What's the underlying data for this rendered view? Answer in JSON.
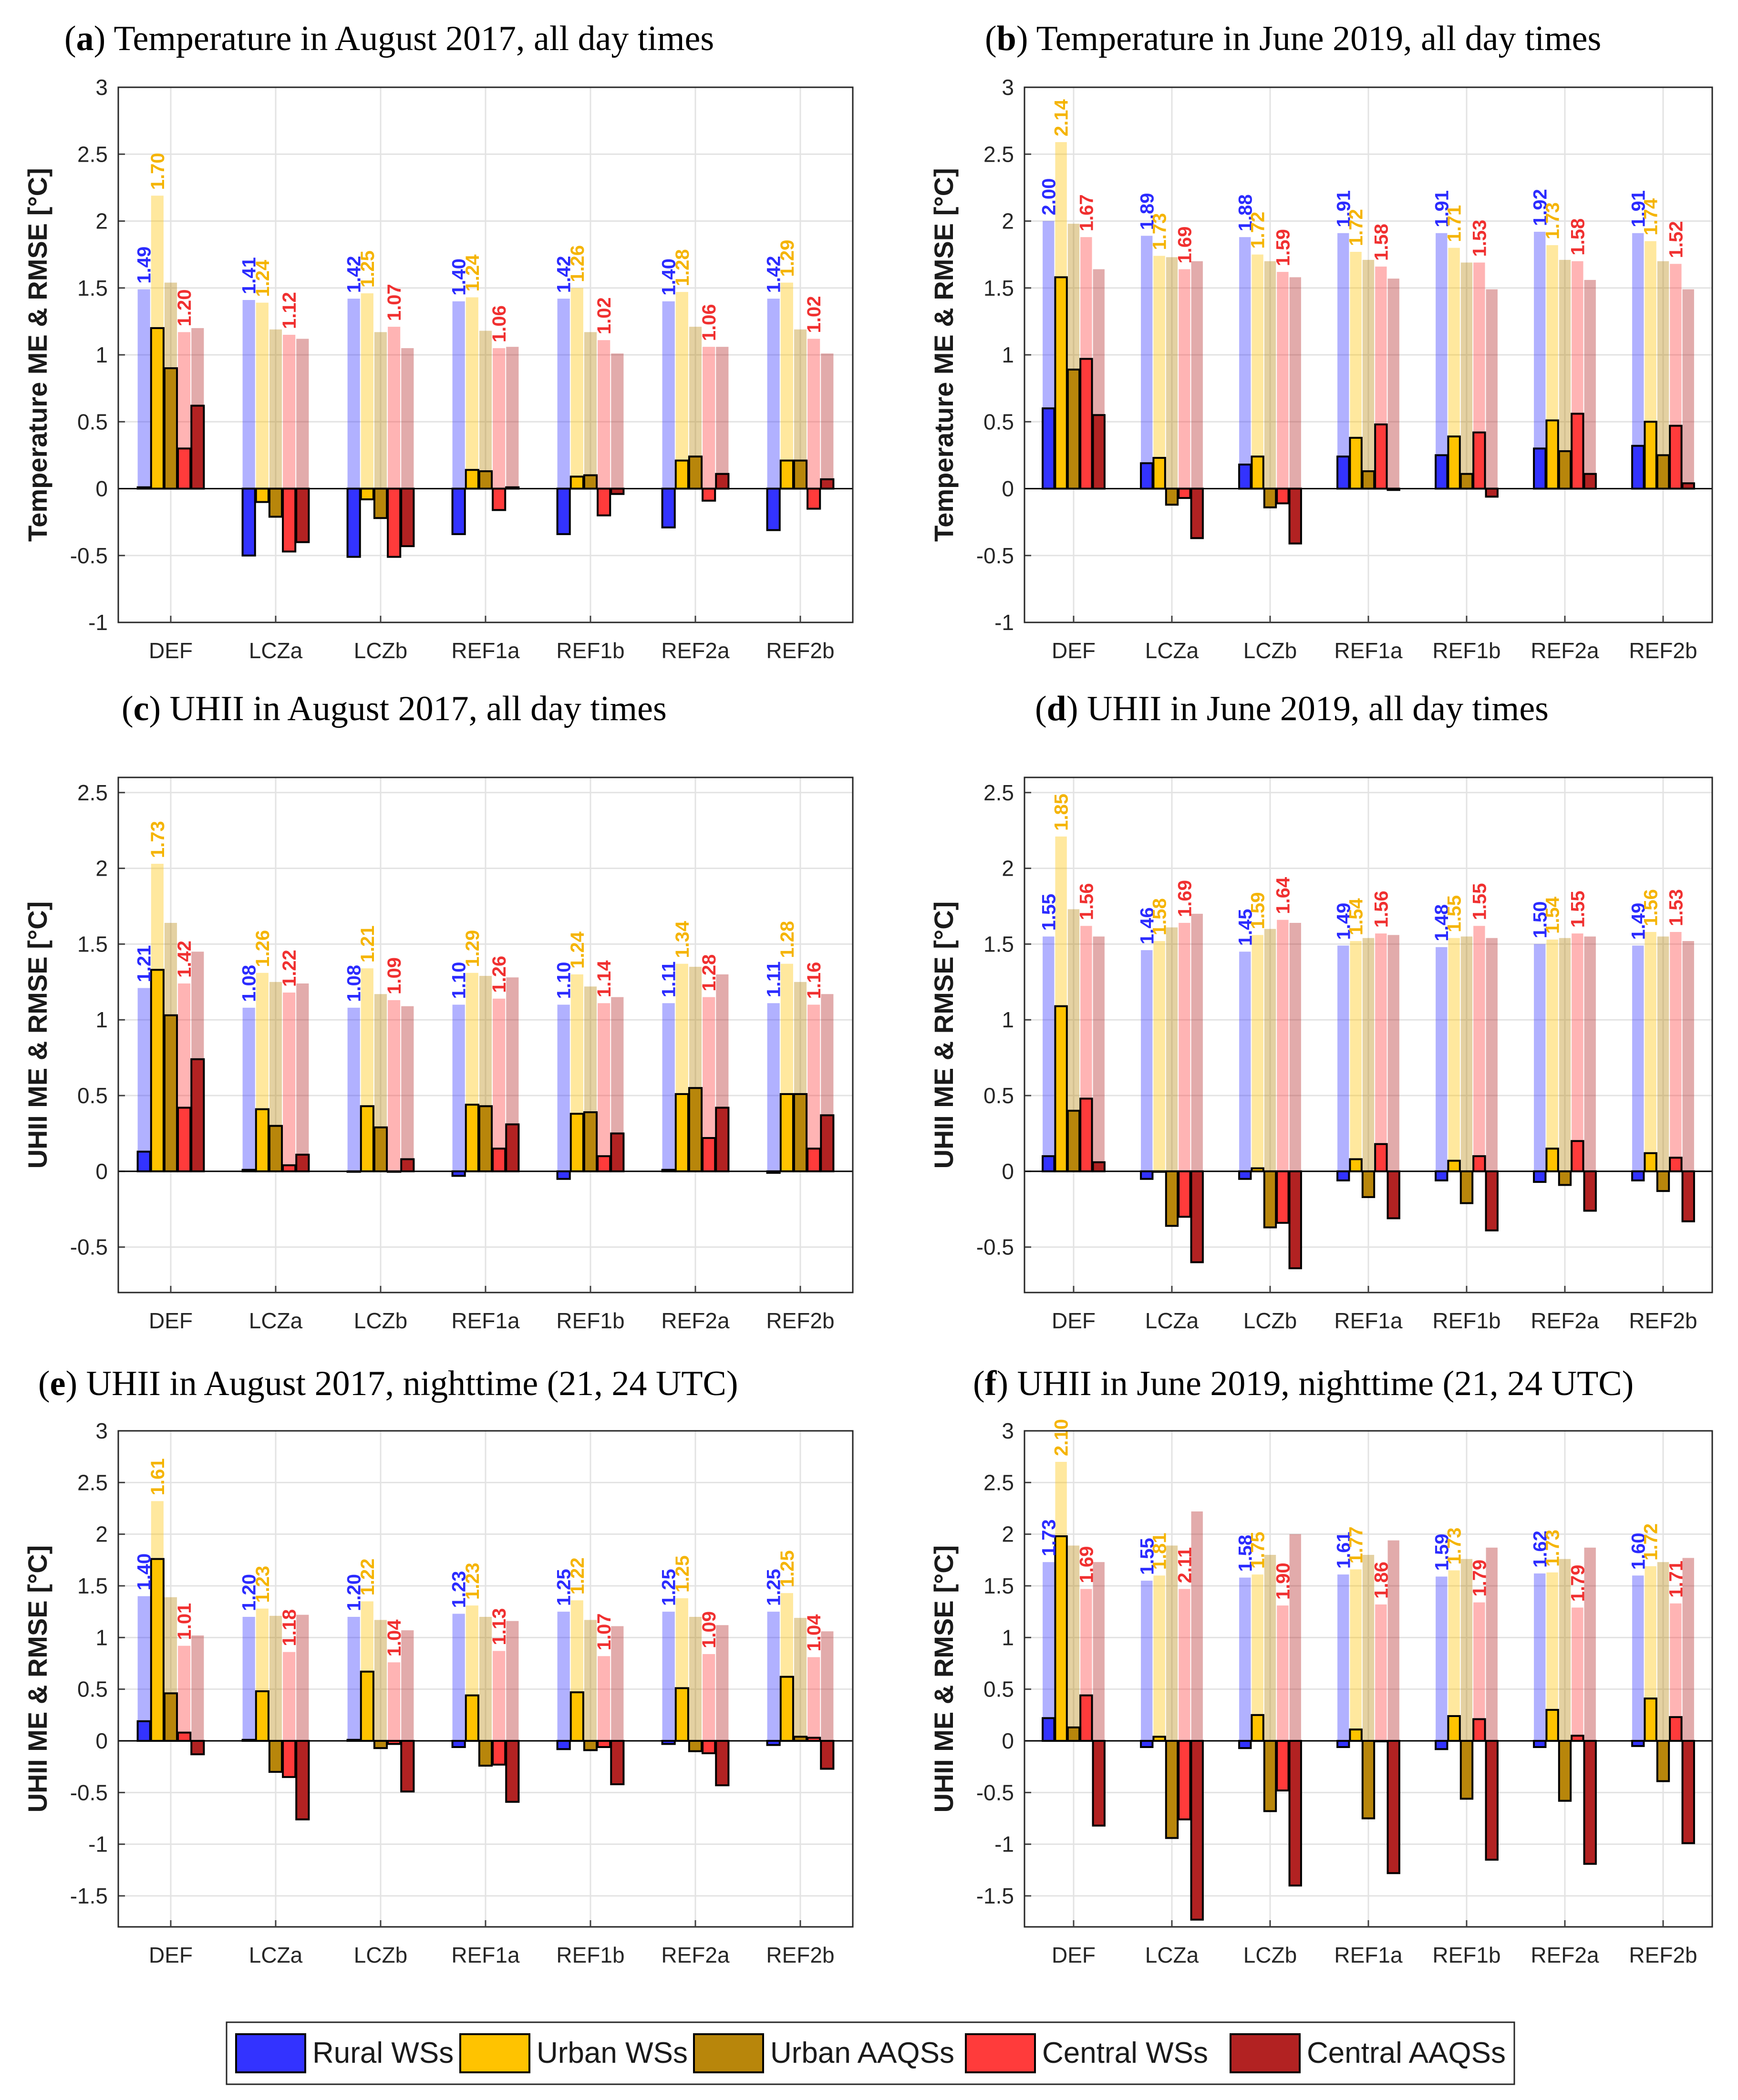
{
  "figure": {
    "colors": {
      "rural": "#3333ff",
      "urban": "#ffc300",
      "urban_aaqs": "#b8860b",
      "central": "#ff3b3b",
      "central_aaqs": "#b22222"
    }
  },
  "legend": {
    "items": [
      {
        "label": "Rural WSs",
        "color": "#3333ff"
      },
      {
        "label": "Urban WSs",
        "color": "#ffc300"
      },
      {
        "label": "Urban AAQSs",
        "color": "#b8860b"
      },
      {
        "label": "Central WSs",
        "color": "#ff3b3b"
      },
      {
        "label": "Central AAQSs",
        "color": "#b22222"
      }
    ]
  },
  "chart_data": [
    {
      "type": "bar",
      "letter": "a",
      "title": "Temperature in August 2017, all day times",
      "ylabel": "Temperature ME & RMSE [°C]",
      "ylim": [
        -1,
        3
      ],
      "yticks": [
        -1,
        -0.5,
        0,
        0.5,
        1,
        1.5,
        2,
        2.5,
        3
      ],
      "ytick_labels": [
        "-1",
        "-0.5",
        "0",
        "0.5",
        "1",
        "1.5",
        "2",
        "2.5",
        "3"
      ],
      "categories": [
        "DEF",
        "LCZa",
        "LCZb",
        "REF1a",
        "REF1b",
        "REF2a",
        "REF2b"
      ],
      "series": [
        {
          "name": "Rural WSs",
          "rmse": [
            1.49,
            1.41,
            1.42,
            1.4,
            1.42,
            1.4,
            1.42
          ],
          "me": [
            0.01,
            -0.5,
            -0.51,
            -0.34,
            -0.34,
            -0.29,
            -0.31
          ]
        },
        {
          "name": "Urban WSs",
          "rmse": [
            2.19,
            1.39,
            1.46,
            1.43,
            1.5,
            1.47,
            1.54
          ],
          "me": [
            1.2,
            -0.1,
            -0.08,
            0.14,
            0.09,
            0.21,
            0.21
          ]
        },
        {
          "name": "Urban AAQSs",
          "rmse": [
            1.54,
            1.19,
            1.17,
            1.18,
            1.17,
            1.21,
            1.19
          ],
          "me": [
            0.9,
            -0.21,
            -0.22,
            0.13,
            0.1,
            0.24,
            0.21
          ]
        },
        {
          "name": "Central WSs",
          "rmse": [
            1.17,
            1.15,
            1.21,
            1.05,
            1.11,
            1.06,
            1.12
          ],
          "me": [
            0.3,
            -0.47,
            -0.51,
            -0.16,
            -0.2,
            -0.09,
            -0.15
          ]
        },
        {
          "name": "Central AAQSs",
          "rmse": [
            1.2,
            1.12,
            1.05,
            1.06,
            1.01,
            1.06,
            1.01
          ],
          "me": [
            0.62,
            -0.4,
            -0.43,
            0.01,
            -0.04,
            0.11,
            0.07
          ]
        }
      ],
      "labels": {
        "Rural WSs": [
          "1.49",
          "1.41",
          "1.42",
          "1.40",
          "1.42",
          "1.40",
          "1.42"
        ],
        "Urban WSs": [
          "1.70",
          "1.24",
          "1.25",
          "1.24",
          "1.26",
          "1.28",
          "1.29"
        ],
        "Central WSs": [
          "1.20",
          "1.12",
          "1.07",
          "1.06",
          "1.02",
          "1.06",
          "1.02"
        ]
      }
    },
    {
      "type": "bar",
      "letter": "b",
      "title": "Temperature in June 2019, all day times",
      "ylabel": "Temperature ME & RMSE [°C]",
      "ylim": [
        -1,
        3
      ],
      "yticks": [
        -1,
        -0.5,
        0,
        0.5,
        1,
        1.5,
        2,
        2.5,
        3
      ],
      "ytick_labels": [
        "-1",
        "-0.5",
        "0",
        "0.5",
        "1",
        "1.5",
        "2",
        "2.5",
        "3"
      ],
      "categories": [
        "DEF",
        "LCZa",
        "LCZb",
        "REF1a",
        "REF1b",
        "REF2a",
        "REF2b"
      ],
      "series": [
        {
          "name": "Rural WSs",
          "rmse": [
            2.0,
            1.89,
            1.88,
            1.91,
            1.91,
            1.92,
            1.91
          ],
          "me": [
            0.6,
            0.19,
            0.18,
            0.24,
            0.25,
            0.3,
            0.32
          ]
        },
        {
          "name": "Urban WSs",
          "rmse": [
            2.59,
            1.74,
            1.75,
            1.77,
            1.8,
            1.82,
            1.85
          ],
          "me": [
            1.58,
            0.23,
            0.24,
            0.38,
            0.39,
            0.51,
            0.5
          ]
        },
        {
          "name": "Urban AAQSs",
          "rmse": [
            1.98,
            1.73,
            1.7,
            1.71,
            1.69,
            1.71,
            1.7
          ],
          "me": [
            0.89,
            -0.12,
            -0.14,
            0.13,
            0.11,
            0.28,
            0.25
          ]
        },
        {
          "name": "Central WSs",
          "rmse": [
            1.88,
            1.64,
            1.62,
            1.66,
            1.69,
            1.7,
            1.68
          ],
          "me": [
            0.97,
            -0.07,
            -0.11,
            0.48,
            0.42,
            0.56,
            0.47
          ]
        },
        {
          "name": "Central AAQSs",
          "rmse": [
            1.64,
            1.7,
            1.58,
            1.57,
            1.49,
            1.56,
            1.49
          ],
          "me": [
            0.55,
            -0.37,
            -0.41,
            -0.01,
            -0.06,
            0.11,
            0.04
          ]
        }
      ],
      "labels": {
        "Rural WSs": [
          "2.00",
          "1.89",
          "1.88",
          "1.91",
          "1.91",
          "1.92",
          "1.91"
        ],
        "Urban WSs": [
          "2.14",
          "1.73",
          "1.72",
          "1.72",
          "1.71",
          "1.73",
          "1.74"
        ],
        "Central WSs": [
          "1.67",
          "1.69",
          "1.59",
          "1.58",
          "1.53",
          "1.58",
          "1.52"
        ]
      }
    },
    {
      "type": "bar",
      "letter": "c",
      "title": "UHII in August 2017, all day times",
      "ylabel": "UHII ME & RMSE [°C]",
      "ylim": [
        -0.8,
        2.6
      ],
      "yticks": [
        -0.5,
        0,
        0.5,
        1,
        1.5,
        2,
        2.5
      ],
      "ytick_labels": [
        "-0.5",
        "0",
        "0.5",
        "1",
        "1.5",
        "2",
        "2.5"
      ],
      "categories": [
        "DEF",
        "LCZa",
        "LCZb",
        "REF1a",
        "REF1b",
        "REF2a",
        "REF2b"
      ],
      "series": [
        {
          "name": "Rural WSs",
          "rmse": [
            1.21,
            1.08,
            1.08,
            1.1,
            1.1,
            1.11,
            1.11
          ],
          "me": [
            0.13,
            0.01,
            0.0,
            -0.03,
            -0.05,
            0.01,
            -0.01
          ]
        },
        {
          "name": "Urban WSs",
          "rmse": [
            2.03,
            1.31,
            1.34,
            1.31,
            1.3,
            1.37,
            1.37
          ],
          "me": [
            1.33,
            0.41,
            0.43,
            0.44,
            0.38,
            0.51,
            0.51
          ]
        },
        {
          "name": "Urban AAQSs",
          "rmse": [
            1.64,
            1.25,
            1.17,
            1.29,
            1.22,
            1.35,
            1.25
          ],
          "me": [
            1.03,
            0.3,
            0.29,
            0.43,
            0.39,
            0.55,
            0.51
          ]
        },
        {
          "name": "Central WSs",
          "rmse": [
            1.24,
            1.18,
            1.13,
            1.14,
            1.11,
            1.15,
            1.1
          ],
          "me": [
            0.42,
            0.04,
            0.0,
            0.15,
            0.1,
            0.22,
            0.15
          ]
        },
        {
          "name": "Central AAQSs",
          "rmse": [
            1.45,
            1.24,
            1.09,
            1.28,
            1.15,
            1.3,
            1.17
          ],
          "me": [
            0.74,
            0.11,
            0.08,
            0.31,
            0.25,
            0.42,
            0.37
          ]
        }
      ],
      "labels": {
        "Rural WSs": [
          "1.21",
          "1.08",
          "1.08",
          "1.10",
          "1.10",
          "1.11",
          "1.11"
        ],
        "Urban WSs": [
          "1.73",
          "1.26",
          "1.21",
          "1.29",
          "1.24",
          "1.34",
          "1.28"
        ],
        "Central WSs": [
          "1.42",
          "1.22",
          "1.09",
          "1.26",
          "1.14",
          "1.28",
          "1.16"
        ]
      }
    },
    {
      "type": "bar",
      "letter": "d",
      "title": "UHII in June 2019, all day times",
      "ylabel": "UHII ME & RMSE [°C]",
      "ylim": [
        -0.8,
        2.6
      ],
      "yticks": [
        -0.5,
        0,
        0.5,
        1,
        1.5,
        2,
        2.5
      ],
      "ytick_labels": [
        "-0.5",
        "0",
        "0.5",
        "1",
        "1.5",
        "2",
        "2.5"
      ],
      "categories": [
        "DEF",
        "LCZa",
        "LCZb",
        "REF1a",
        "REF1b",
        "REF2a",
        "REF2b"
      ],
      "series": [
        {
          "name": "Rural WSs",
          "rmse": [
            1.55,
            1.46,
            1.45,
            1.49,
            1.48,
            1.5,
            1.49
          ],
          "me": [
            0.1,
            -0.05,
            -0.05,
            -0.06,
            -0.06,
            -0.07,
            -0.06
          ]
        },
        {
          "name": "Urban WSs",
          "rmse": [
            2.21,
            1.52,
            1.56,
            1.52,
            1.54,
            1.53,
            1.58
          ],
          "me": [
            1.09,
            0.0,
            0.02,
            0.08,
            0.07,
            0.15,
            0.12
          ]
        },
        {
          "name": "Urban AAQSs",
          "rmse": [
            1.73,
            1.61,
            1.6,
            1.54,
            1.55,
            1.54,
            1.55
          ],
          "me": [
            0.4,
            -0.36,
            -0.37,
            -0.17,
            -0.21,
            -0.09,
            -0.13
          ]
        },
        {
          "name": "Central WSs",
          "rmse": [
            1.62,
            1.64,
            1.66,
            1.57,
            1.62,
            1.57,
            1.58
          ],
          "me": [
            0.48,
            -0.3,
            -0.34,
            0.18,
            0.1,
            0.2,
            0.09
          ]
        },
        {
          "name": "Central AAQSs",
          "rmse": [
            1.55,
            1.7,
            1.64,
            1.56,
            1.54,
            1.55,
            1.52
          ],
          "me": [
            0.06,
            -0.6,
            -0.64,
            -0.31,
            -0.39,
            -0.26,
            -0.33
          ]
        }
      ],
      "labels": {
        "Rural WSs": [
          "1.55",
          "1.46",
          "1.45",
          "1.49",
          "1.48",
          "1.50",
          "1.49"
        ],
        "Urban WSs": [
          "1.85",
          "1.58",
          "1.59",
          "1.54",
          "1.55",
          "1.54",
          "1.56"
        ],
        "Central WSs": [
          "1.56",
          "1.69",
          "1.64",
          "1.56",
          "1.55",
          "1.55",
          "1.53"
        ]
      }
    },
    {
      "type": "bar",
      "letter": "e",
      "title": "UHII in August 2017, nighttime (21, 24 UTC)",
      "ylabel": "UHII ME & RMSE [°C]",
      "ylim": [
        -1.8,
        3
      ],
      "yticks": [
        -1.5,
        -1,
        -0.5,
        0,
        0.5,
        1,
        1.5,
        2,
        2.5,
        3
      ],
      "ytick_labels": [
        "-1.5",
        "-1",
        "-0.5",
        "0",
        "0.5",
        "1",
        "1.5",
        "2",
        "2.5",
        "3"
      ],
      "categories": [
        "DEF",
        "LCZa",
        "LCZb",
        "REF1a",
        "REF1b",
        "REF2a",
        "REF2b"
      ],
      "series": [
        {
          "name": "Rural WSs",
          "rmse": [
            1.4,
            1.2,
            1.2,
            1.23,
            1.25,
            1.25,
            1.25
          ],
          "me": [
            0.19,
            0.01,
            0.01,
            -0.06,
            -0.08,
            -0.03,
            -0.04
          ]
        },
        {
          "name": "Urban WSs",
          "rmse": [
            2.32,
            1.28,
            1.35,
            1.31,
            1.36,
            1.38,
            1.43
          ],
          "me": [
            1.76,
            0.48,
            0.67,
            0.44,
            0.47,
            0.51,
            0.62
          ]
        },
        {
          "name": "Urban AAQSs",
          "rmse": [
            1.39,
            1.21,
            1.17,
            1.2,
            1.17,
            1.2,
            1.19
          ],
          "me": [
            0.46,
            -0.3,
            -0.07,
            -0.24,
            -0.09,
            -0.1,
            0.04
          ]
        },
        {
          "name": "Central WSs",
          "rmse": [
            0.92,
            0.86,
            0.76,
            0.87,
            0.82,
            0.84,
            0.81
          ],
          "me": [
            0.08,
            -0.35,
            -0.03,
            -0.23,
            -0.06,
            -0.12,
            0.03
          ]
        },
        {
          "name": "Central AAQSs",
          "rmse": [
            1.02,
            1.22,
            1.07,
            1.16,
            1.11,
            1.12,
            1.06
          ],
          "me": [
            -0.13,
            -0.76,
            -0.49,
            -0.59,
            -0.42,
            -0.43,
            -0.27
          ]
        }
      ],
      "labels": {
        "Rural WSs": [
          "1.40",
          "1.20",
          "1.20",
          "1.23",
          "1.25",
          "1.25",
          "1.25"
        ],
        "Urban WSs": [
          "1.61",
          "1.23",
          "1.22",
          "1.23",
          "1.22",
          "1.25",
          "1.25"
        ],
        "Central WSs": [
          "1.01",
          "1.18",
          "1.04",
          "1.13",
          "1.07",
          "1.09",
          "1.04"
        ]
      }
    },
    {
      "type": "bar",
      "letter": "f",
      "title": "UHII in June 2019, nighttime (21, 24 UTC)",
      "ylabel": "UHII ME & RMSE [°C]",
      "ylim": [
        -1.8,
        3
      ],
      "yticks": [
        -1.5,
        -1,
        -0.5,
        0,
        0.5,
        1,
        1.5,
        2,
        2.5,
        3
      ],
      "ytick_labels": [
        "-1.5",
        "-1",
        "-0.5",
        "0",
        "0.5",
        "1",
        "1.5",
        "2",
        "2.5",
        "3"
      ],
      "categories": [
        "DEF",
        "LCZa",
        "LCZb",
        "REF1a",
        "REF1b",
        "REF2a",
        "REF2b"
      ],
      "series": [
        {
          "name": "Rural WSs",
          "rmse": [
            1.73,
            1.55,
            1.58,
            1.61,
            1.59,
            1.62,
            1.6
          ],
          "me": [
            0.22,
            -0.06,
            -0.07,
            -0.06,
            -0.08,
            -0.06,
            -0.05
          ]
        },
        {
          "name": "Urban WSs",
          "rmse": [
            2.7,
            1.6,
            1.61,
            1.66,
            1.65,
            1.63,
            1.69
          ],
          "me": [
            1.98,
            0.04,
            0.25,
            0.11,
            0.24,
            0.3,
            0.41
          ]
        },
        {
          "name": "Urban AAQSs",
          "rmse": [
            1.89,
            1.89,
            1.8,
            1.8,
            1.76,
            1.76,
            1.73
          ],
          "me": [
            0.13,
            -0.94,
            -0.68,
            -0.75,
            -0.56,
            -0.58,
            -0.39
          ]
        },
        {
          "name": "Central WSs",
          "rmse": [
            1.47,
            1.47,
            1.31,
            1.32,
            1.34,
            1.29,
            1.33
          ],
          "me": [
            0.44,
            -0.76,
            -0.48,
            0.0,
            0.21,
            0.05,
            0.23
          ]
        },
        {
          "name": "Central AAQSs",
          "rmse": [
            1.73,
            2.22,
            2.0,
            1.94,
            1.87,
            1.87,
            1.77
          ],
          "me": [
            -0.82,
            -1.73,
            -1.4,
            -1.28,
            -1.15,
            -1.19,
            -0.99
          ]
        }
      ],
      "labels": {
        "Rural WSs": [
          "1.73",
          "1.55",
          "1.58",
          "1.61",
          "1.59",
          "1.62",
          "1.60"
        ],
        "Urban WSs": [
          "2.10",
          "1.81",
          "1.75",
          "1.77",
          "1.73",
          "1.73",
          "1.72"
        ],
        "Central WSs": [
          "1.69",
          "2.11",
          "1.90",
          "1.86",
          "1.79",
          "1.79",
          "1.71"
        ]
      }
    }
  ]
}
